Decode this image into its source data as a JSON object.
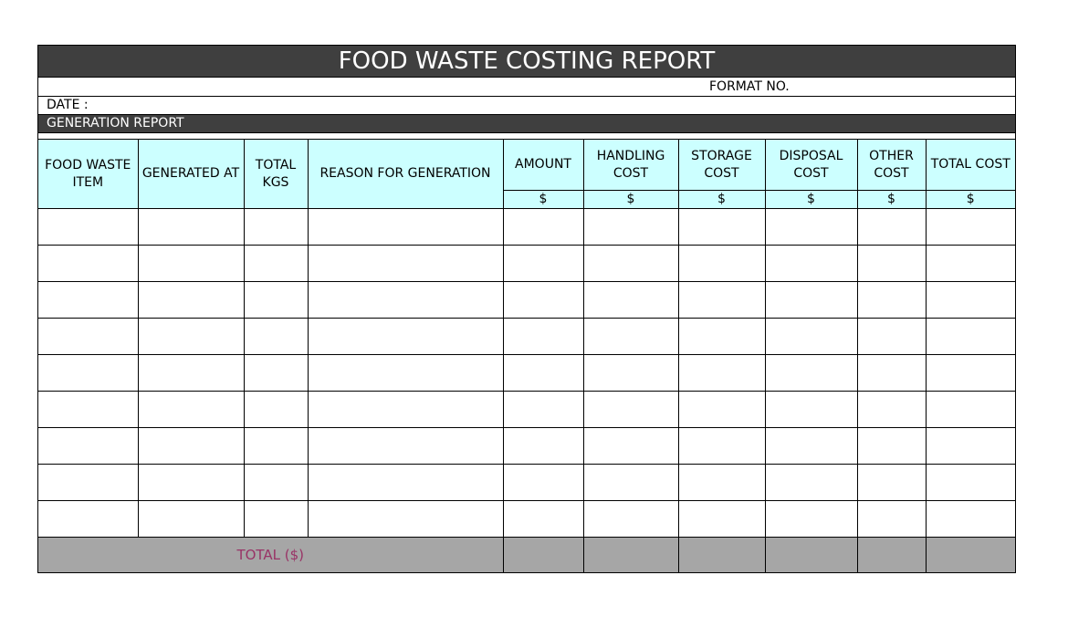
{
  "report": {
    "title": "FOOD WASTE COSTING REPORT",
    "format_no_label": "FORMAT NO.",
    "date_label": "DATE :",
    "section_label": "GENERATION REPORT"
  },
  "table": {
    "headers": [
      "FOOD WASTE ITEM",
      "GENERATED AT",
      "TOTAL KGS",
      "REASON FOR GENERATION",
      "AMOUNT",
      "HANDLING COST",
      "STORAGE COST",
      "DISPOSAL COST",
      "OTHER COST",
      "TOTAL COST"
    ],
    "unit_symbol": "$",
    "empty_row_count": 9,
    "total_label": "TOTAL ($)"
  },
  "colors": {
    "title_bar": "#3f3f3f",
    "header_fill": "#ccffff",
    "total_fill": "#a6a6a6",
    "total_text": "#993366"
  }
}
